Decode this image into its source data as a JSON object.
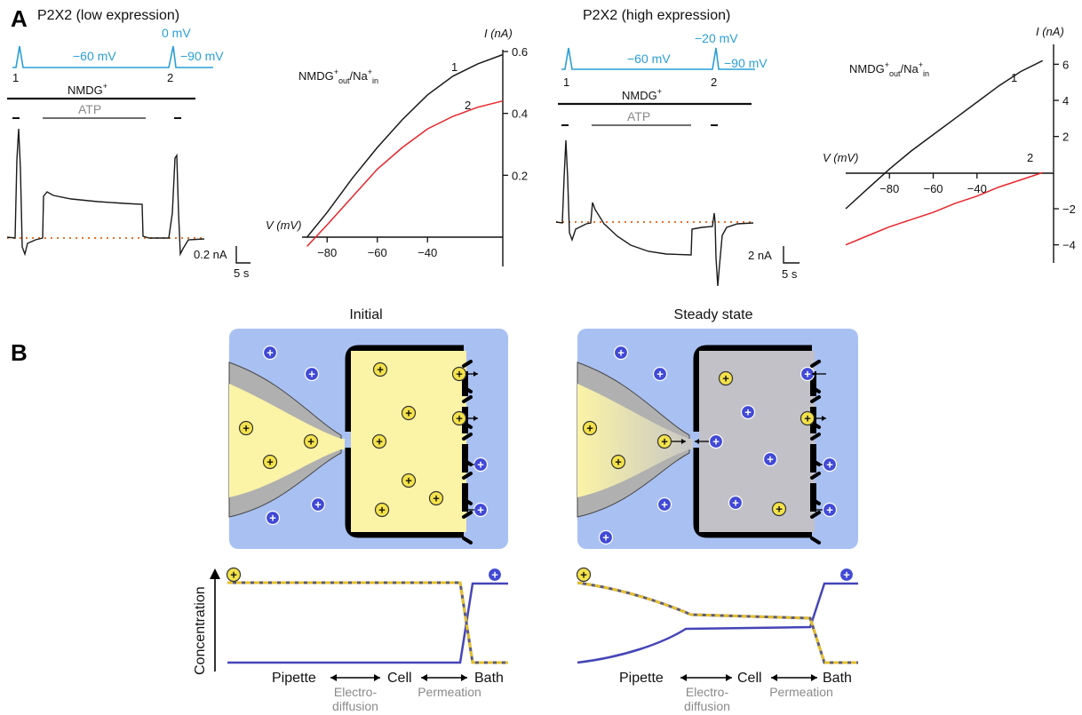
{
  "panels": {
    "a": "A",
    "b": "B"
  },
  "panel_a": {
    "low": {
      "title": "P2X2 (low expression)",
      "protocol": {
        "v_step": "0 mV",
        "v_hold": "−60 mV",
        "v_end": "−90 mV",
        "ramp1": "1",
        "ramp2": "2"
      },
      "bar_nmdg": "NMDG",
      "bar_nmdg_sup": "+",
      "bar_atp": "ATP",
      "scale_current": "0.2 nA",
      "scale_time": "5 s"
    },
    "high": {
      "title": "P2X2 (high expression)",
      "protocol": {
        "v_step": "−20 mV",
        "v_hold": "−60 mV",
        "v_end": "−90 mV",
        "ramp1": "1",
        "ramp2": "2"
      },
      "bar_nmdg": "NMDG",
      "bar_nmdg_sup": "+",
      "bar_atp": "ATP",
      "scale_current": "2 nA",
      "scale_time": "5 s"
    },
    "iv_low": {
      "legend": {
        "a": "NMDG",
        "b": "+",
        "c": "out",
        "d": "/Na",
        "e": "+",
        "f": "in"
      },
      "y_axis_label": "I (nA)",
      "x_axis_label": "V (mV)",
      "y_ticks": [
        "0.6",
        "0.4",
        "0.2"
      ],
      "x_ticks": [
        "−80",
        "−60",
        "−40"
      ],
      "curve_labels": [
        "1",
        "2"
      ]
    },
    "iv_high": {
      "legend": {
        "a": "NMDG",
        "b": "+",
        "c": "out",
        "d": "/Na",
        "e": "+",
        "f": "in"
      },
      "y_axis_label": "I (nA)",
      "x_axis_label": "V (mV)",
      "y_ticks": [
        "6",
        "4",
        "2",
        "−2",
        "−4"
      ],
      "x_ticks": [
        "−80",
        "−60",
        "−40"
      ],
      "curve_labels": [
        "1",
        "2"
      ]
    }
  },
  "chart_data": [
    {
      "type": "line",
      "xlabel": "V (mV)",
      "ylabel": "I (nA)",
      "xlim": [
        -90,
        -10
      ],
      "ylim": [
        0,
        0.6
      ],
      "series": [
        {
          "name": "1",
          "x": [
            -88,
            -80,
            -70,
            -60,
            -50,
            -40,
            -30,
            -20,
            -10
          ],
          "values": [
            0.0,
            0.08,
            0.19,
            0.29,
            0.38,
            0.46,
            0.52,
            0.56,
            0.59
          ]
        },
        {
          "name": "2",
          "x": [
            -88,
            -80,
            -70,
            -60,
            -50,
            -40,
            -30,
            -20,
            -10
          ],
          "values": [
            -0.03,
            0.04,
            0.13,
            0.22,
            0.29,
            0.35,
            0.39,
            0.42,
            0.44
          ]
        }
      ]
    },
    {
      "type": "line",
      "xlabel": "V (mV)",
      "ylabel": "I (nA)",
      "xlim": [
        -100,
        -5
      ],
      "ylim": [
        -5,
        7
      ],
      "series": [
        {
          "name": "1",
          "x": [
            -100,
            -90,
            -80,
            -70,
            -60,
            -50,
            -40,
            -30,
            -20,
            -10
          ],
          "values": [
            -2.0,
            -0.9,
            0.2,
            1.2,
            2.1,
            3.0,
            3.9,
            4.8,
            5.6,
            6.2
          ]
        },
        {
          "name": "2",
          "x": [
            -100,
            -90,
            -80,
            -70,
            -60,
            -50,
            -40,
            -30,
            -20,
            -10
          ],
          "values": [
            -4.0,
            -3.5,
            -3.0,
            -2.6,
            -2.2,
            -1.7,
            -1.3,
            -0.8,
            -0.4,
            0.0
          ]
        }
      ]
    }
  ],
  "panel_b": {
    "initial_title": "Initial",
    "steady_title": "Steady state",
    "ion_symbol": "+",
    "axis_y": "Concentration",
    "labels": {
      "pipette": "Pipette",
      "cell": "Cell",
      "bath": "Bath",
      "electro1": "Electro-",
      "electro2": "diffusion",
      "permeation": "Permeation"
    }
  },
  "colors": {
    "trace": "#1a1a1a",
    "red_curve": "#e8252b",
    "protocol_blue": "#2a9fd6",
    "dotted_orange": "#e8712a",
    "bath_blue": "#a9c0f2",
    "cell_yellow": "#fbf3a6",
    "cell_gray": "#c2c1c8",
    "pipette_gray": "#b0b0b0",
    "ion_yellow": "#f4e24a",
    "ion_blue": "#4149d6",
    "conc_line": "#4545b8",
    "conc_dash": "#e6bf2c"
  }
}
